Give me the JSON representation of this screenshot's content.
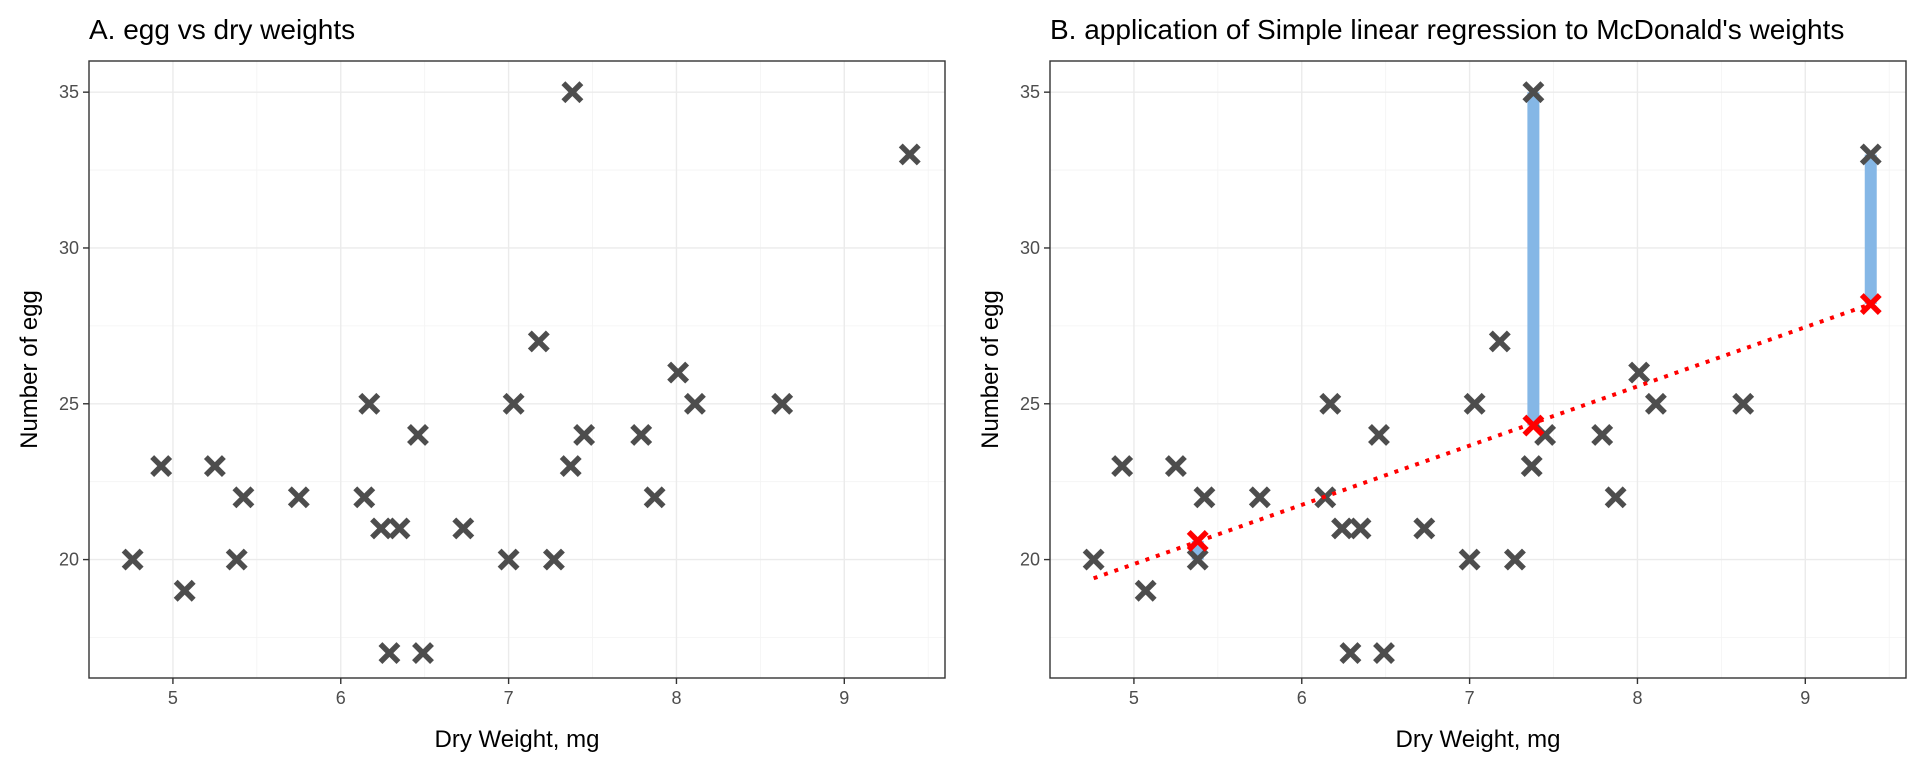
{
  "chart_data": [
    {
      "type": "scatter",
      "title": "A. egg vs dry weights",
      "xlabel": "Dry Weight, mg",
      "ylabel": "Number of egg",
      "xlim": [
        4.5,
        9.6
      ],
      "ylim": [
        16.2,
        36.0
      ],
      "x_ticks": [
        5,
        6,
        7,
        8,
        9
      ],
      "y_ticks": [
        20,
        25,
        30,
        35
      ],
      "grid": true,
      "marker": "x",
      "colors": {
        "points": "#4d4d4d"
      },
      "points": [
        {
          "x": 4.76,
          "y": 20
        },
        {
          "x": 4.93,
          "y": 23
        },
        {
          "x": 5.07,
          "y": 19
        },
        {
          "x": 5.25,
          "y": 23
        },
        {
          "x": 5.38,
          "y": 20
        },
        {
          "x": 5.42,
          "y": 22
        },
        {
          "x": 5.75,
          "y": 22
        },
        {
          "x": 6.14,
          "y": 22
        },
        {
          "x": 6.17,
          "y": 25
        },
        {
          "x": 6.24,
          "y": 21
        },
        {
          "x": 6.29,
          "y": 17
        },
        {
          "x": 6.35,
          "y": 21
        },
        {
          "x": 6.46,
          "y": 24
        },
        {
          "x": 6.49,
          "y": 17
        },
        {
          "x": 6.73,
          "y": 21
        },
        {
          "x": 7.0,
          "y": 20
        },
        {
          "x": 7.03,
          "y": 25
        },
        {
          "x": 7.18,
          "y": 27
        },
        {
          "x": 7.27,
          "y": 20
        },
        {
          "x": 7.37,
          "y": 23
        },
        {
          "x": 7.38,
          "y": 35
        },
        {
          "x": 7.45,
          "y": 24
        },
        {
          "x": 7.79,
          "y": 24
        },
        {
          "x": 7.87,
          "y": 22
        },
        {
          "x": 8.01,
          "y": 26
        },
        {
          "x": 8.11,
          "y": 25
        },
        {
          "x": 8.63,
          "y": 25
        },
        {
          "x": 9.39,
          "y": 33
        }
      ]
    },
    {
      "type": "scatter",
      "title": "B. application of Simple linear regression to McDonald's weights",
      "xlabel": "Dry Weight, mg",
      "ylabel": "Number of egg",
      "xlim": [
        4.5,
        9.6
      ],
      "ylim": [
        16.2,
        36.0
      ],
      "x_ticks": [
        5,
        6,
        7,
        8,
        9
      ],
      "y_ticks": [
        20,
        25,
        30,
        35
      ],
      "grid": true,
      "marker": "x",
      "colors": {
        "points": "#4d4d4d",
        "fit": "#ff0000",
        "residual": "#85b7e6"
      },
      "points": [
        {
          "x": 4.76,
          "y": 20
        },
        {
          "x": 4.93,
          "y": 23
        },
        {
          "x": 5.07,
          "y": 19
        },
        {
          "x": 5.25,
          "y": 23
        },
        {
          "x": 5.38,
          "y": 20
        },
        {
          "x": 5.42,
          "y": 22
        },
        {
          "x": 5.75,
          "y": 22
        },
        {
          "x": 6.14,
          "y": 22
        },
        {
          "x": 6.17,
          "y": 25
        },
        {
          "x": 6.24,
          "y": 21
        },
        {
          "x": 6.29,
          "y": 17
        },
        {
          "x": 6.35,
          "y": 21
        },
        {
          "x": 6.46,
          "y": 24
        },
        {
          "x": 6.49,
          "y": 17
        },
        {
          "x": 6.73,
          "y": 21
        },
        {
          "x": 7.0,
          "y": 20
        },
        {
          "x": 7.03,
          "y": 25
        },
        {
          "x": 7.18,
          "y": 27
        },
        {
          "x": 7.27,
          "y": 20
        },
        {
          "x": 7.37,
          "y": 23
        },
        {
          "x": 7.38,
          "y": 35
        },
        {
          "x": 7.45,
          "y": 24
        },
        {
          "x": 7.79,
          "y": 24
        },
        {
          "x": 7.87,
          "y": 22
        },
        {
          "x": 8.01,
          "y": 26
        },
        {
          "x": 8.11,
          "y": 25
        },
        {
          "x": 8.63,
          "y": 25
        },
        {
          "x": 9.39,
          "y": 33
        }
      ],
      "regression_line": {
        "x": [
          4.76,
          9.39
        ],
        "y": [
          19.4,
          28.2
        ]
      },
      "fitted_points": [
        {
          "x": 5.38,
          "y": 20.6
        },
        {
          "x": 7.38,
          "y": 24.3
        },
        {
          "x": 9.39,
          "y": 28.2
        }
      ],
      "residuals": [
        {
          "x": 5.38,
          "y_from": 20.6,
          "y_to": 20
        },
        {
          "x": 7.38,
          "y_from": 24.3,
          "y_to": 35
        },
        {
          "x": 9.39,
          "y_from": 28.2,
          "y_to": 33
        }
      ]
    }
  ]
}
